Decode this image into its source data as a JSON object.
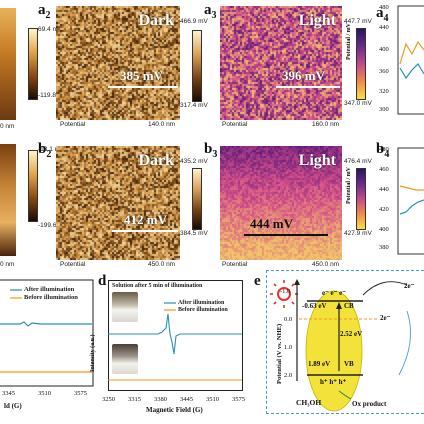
{
  "panels": {
    "a1": {
      "label_max": "69.4 nm",
      "label_min": "-119.8 nm",
      "scale": "0 nm"
    },
    "a2": {
      "letter": "a",
      "sub": "2",
      "word": "Dark",
      "value": "385 mV",
      "caption": "Potential",
      "scale": "140.0 nm",
      "colors": [
        "#3d1f0a",
        "#c8883a",
        "#f3d9a0"
      ]
    },
    "a2_cb": {
      "max": "466.9 mV",
      "min": "317.4 mV"
    },
    "a3": {
      "letter": "a",
      "sub": "3",
      "word": "Light",
      "value": "396 mV",
      "caption": "Potential",
      "scale": "160.0 nm",
      "colors": [
        "#5a1a7a",
        "#d64f8a",
        "#f2c46a"
      ]
    },
    "a3_cb": {
      "max": "447.7 mV",
      "min": "347.0 mV"
    },
    "a4": {
      "letter": "a",
      "sub": "4",
      "ylabel": "Potential / mV",
      "ticks": [
        "480",
        "440",
        "400",
        "360",
        "320",
        "300"
      ]
    },
    "b1": {
      "letter": "b",
      "sub": "2",
      "label_max": "-13.1 nm",
      "label_min": "-199.6 nm",
      "scale": "0 nm"
    },
    "b2": {
      "letter": "b",
      "sub": "2",
      "word": "Dark",
      "value": "412 mV",
      "caption": "Potential",
      "scale": "450.0 nm",
      "colors": [
        "#3d1f0a",
        "#c8883a",
        "#f3d9a0"
      ]
    },
    "b2_cb": {
      "max": "435.2 mV",
      "min": "384.5 mV"
    },
    "b3": {
      "letter": "b",
      "sub": "3",
      "word": "Light",
      "value": "444 mV",
      "caption": "Potential",
      "scale": "450.0 nm",
      "colors": [
        "#5a1a7a",
        "#d64f8a",
        "#f2c46a"
      ]
    },
    "b3_cb": {
      "max": "476.4 mV",
      "min": "427.9 mV"
    },
    "b4": {
      "letter": "b",
      "sub": "4",
      "ylabel": "Potential / mV",
      "ticks": [
        "480",
        "460",
        "440",
        "420",
        "400",
        "380"
      ]
    },
    "c": {
      "legend_after": "After illumination",
      "legend_before": "Before illumination",
      "xticks": [
        "3345",
        "3510",
        "3575"
      ],
      "xlabel": "ld (G)"
    },
    "d": {
      "letter": "d",
      "title": "Solution after 5 min of illumination",
      "legend_after": "After illumination",
      "legend_before": "Before illumination",
      "ylabel": "Intensity (a.u.)",
      "xlabel": "Magnetic Field (G)",
      "xticks": [
        "3250",
        "3315",
        "3380",
        "3445",
        "3510",
        "3575"
      ]
    },
    "e": {
      "letter": "e",
      "ylabel": "Potential (V vs. NHE)",
      "cb_value": "-0.63 eV",
      "cb": "CB",
      "gap": "2.52 eV",
      "vb_value": "1.89 eV",
      "vb": "VB",
      "electrons": "e⁻  e⁻  e⁻",
      "holes": "h⁺  h⁺  h⁺",
      "methanol": "CH₃OH",
      "ox": "Ox product",
      "e_right_top": "2e⁻",
      "e_right_mid": "2e⁻",
      "yticks": [
        "-1.0",
        "0.0",
        "1.0",
        "2.0"
      ]
    }
  },
  "colors": {
    "blue_line": "#2a8fb8",
    "orange_line": "#f29a1e",
    "light_orange": "#f3a94a",
    "light_blue": "#5ab0d8",
    "semicon": "#f2e23a",
    "sun": "#e8322a",
    "dash_blue": "#4a9ad8"
  }
}
